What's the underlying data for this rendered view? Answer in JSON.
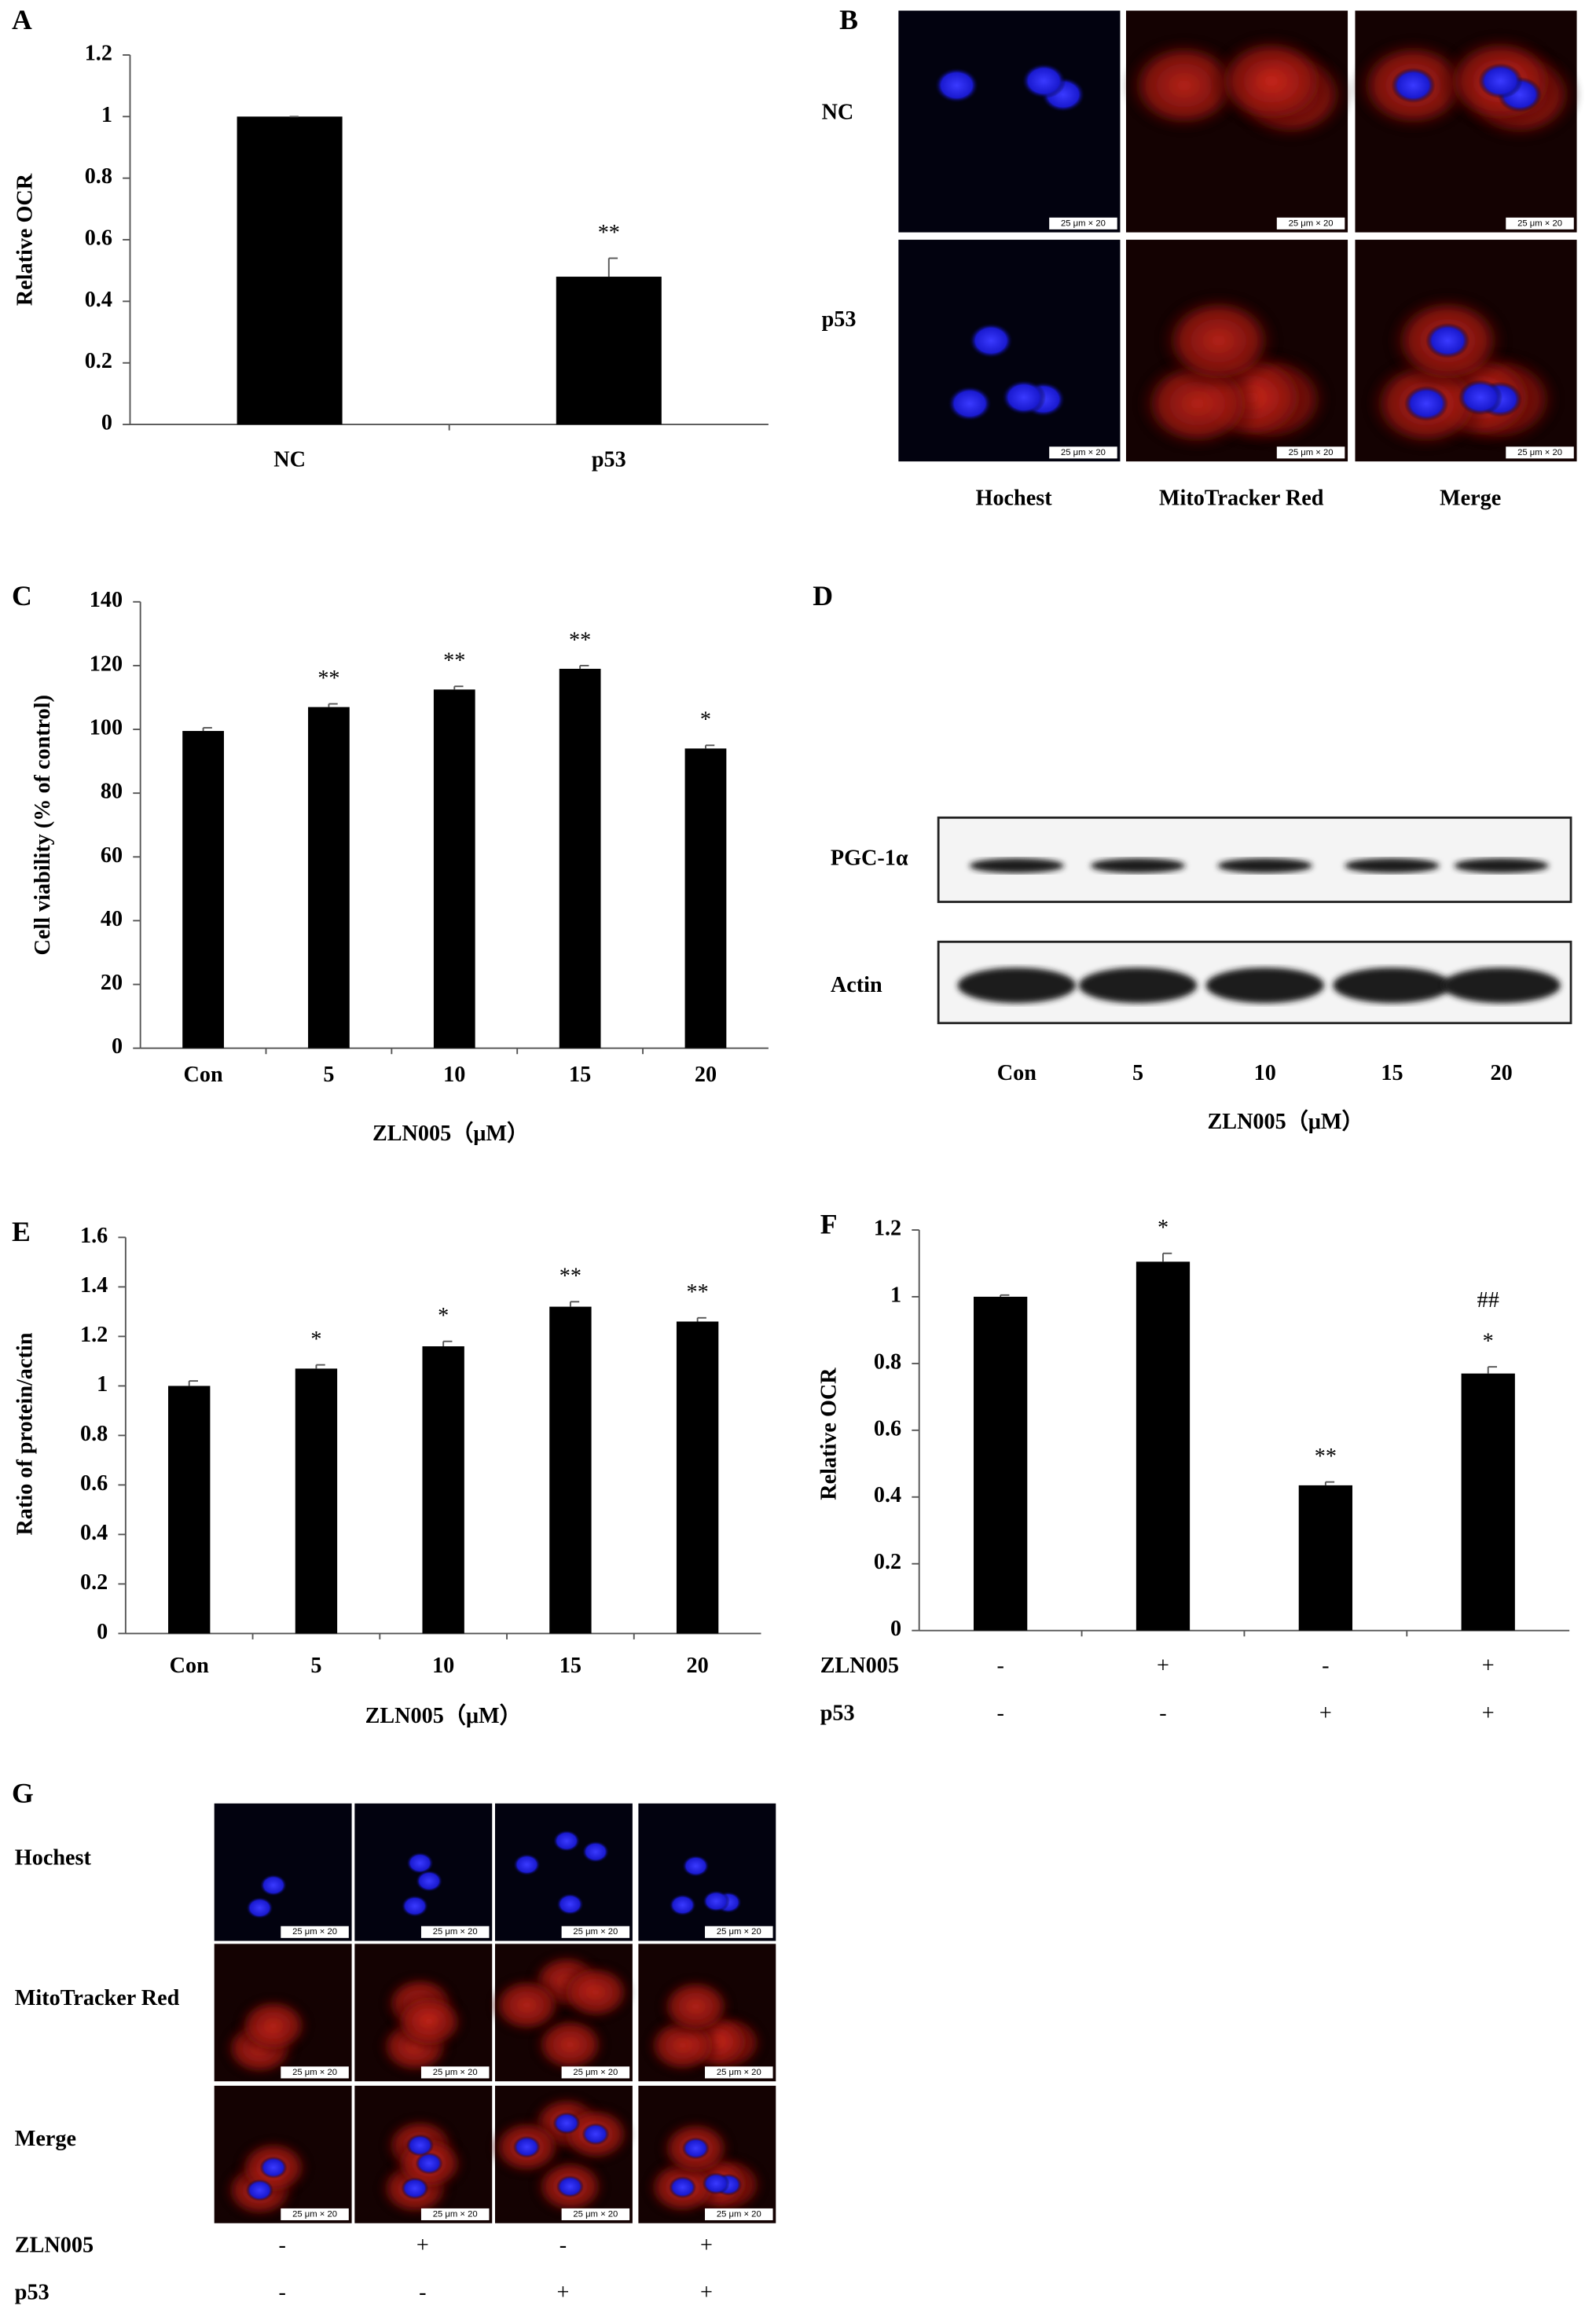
{
  "chart_data": [
    {
      "type": "bar",
      "label": "A",
      "y_label": "Relative  OCR",
      "categories": [
        "NC",
        "p53"
      ],
      "values": [
        1,
        0.48
      ],
      "errors": [
        0,
        0.06
      ],
      "significance": [
        null,
        "**"
      ],
      "color": "#000000",
      "ylim": [
        0,
        1.2
      ],
      "yticks": [
        0,
        0.2,
        0.4,
        0.6,
        0.8,
        1,
        1.2
      ]
    },
    {
      "type": "bar",
      "label": "C",
      "y_label": "Cell viability (% of control)",
      "x_label": "ZLN005（μM）",
      "categories": [
        "Con",
        "5",
        "10",
        "15",
        "20"
      ],
      "values": [
        99.5,
        107,
        112.5,
        119,
        94
      ],
      "errors": [
        1,
        1,
        1,
        1,
        1
      ],
      "significance": [
        null,
        "**",
        "**",
        "**",
        "*"
      ],
      "color": "#000000",
      "ylim": [
        0,
        140
      ],
      "yticks": [
        0,
        20,
        40,
        60,
        80,
        100,
        120,
        140
      ]
    },
    {
      "type": "bar",
      "label": "E",
      "y_label": "Ratio of protein/actin",
      "x_label": "ZLN005（μM）",
      "categories": [
        "Con",
        "5",
        "10",
        "15",
        "20"
      ],
      "values": [
        1.0,
        1.07,
        1.16,
        1.32,
        1.26
      ],
      "errors": [
        0.02,
        0.015,
        0.02,
        0.02,
        0.015
      ],
      "significance": [
        null,
        "*",
        "*",
        "**",
        "**"
      ],
      "color": "#000000",
      "ylim": [
        0,
        1.6
      ],
      "yticks": [
        0,
        0.2,
        0.4,
        0.6,
        0.8,
        1,
        1.2,
        1.4,
        1.6
      ]
    },
    {
      "type": "bar",
      "label": "F",
      "y_label": "Relative OCR",
      "values": [
        1.0,
        1.105,
        0.435,
        0.77
      ],
      "errors": [
        0.005,
        0.025,
        0.01,
        0.02
      ],
      "significance": [
        null,
        "*",
        "**",
        "*"
      ],
      "significance_2": [
        null,
        null,
        null,
        "##"
      ],
      "factors": [
        {
          "name": "ZLN005",
          "levels": [
            "-",
            "+",
            "-",
            "+"
          ]
        },
        {
          "name": "p53",
          "levels": [
            "-",
            "-",
            "+",
            "+"
          ]
        }
      ],
      "color": "#000000",
      "ylim": [
        0,
        1.2
      ],
      "yticks": [
        0,
        0.2,
        0.4,
        0.6,
        0.8,
        1,
        1.2
      ]
    }
  ],
  "panels": {
    "B": {
      "label": "B",
      "rows": [
        "NC",
        "p53"
      ],
      "columns": [
        "Hochest",
        "MitoTracker Red",
        "Merge"
      ],
      "scale_bar": "25 μm × 20"
    },
    "D": {
      "label": "D",
      "blots": [
        "PGC-1α",
        "Actin"
      ],
      "lanes": [
        "Con",
        "5",
        "10",
        "15",
        "20"
      ],
      "x_label": "ZLN005（μM）"
    },
    "G": {
      "label": "G",
      "rows": [
        "Hochest",
        "MitoTracker Red",
        "Merge"
      ],
      "scale_bar": "25 μm × 20",
      "factors": [
        {
          "name": "ZLN005",
          "levels": [
            "-",
            "+",
            "-",
            "+"
          ]
        },
        {
          "name": "p53",
          "levels": [
            "-",
            "-",
            "+",
            "+"
          ]
        }
      ]
    }
  }
}
